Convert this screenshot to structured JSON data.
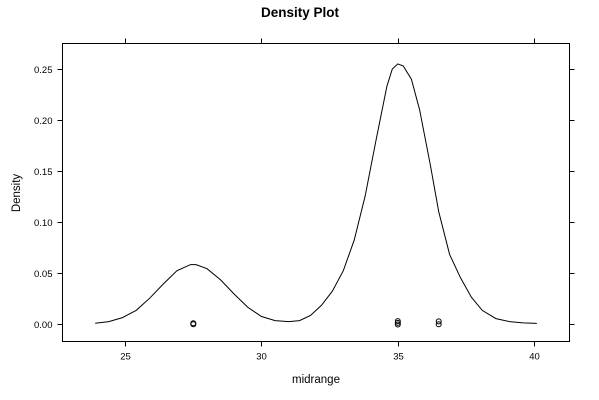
{
  "chart_data": {
    "type": "line",
    "title": "Density Plot",
    "xlabel": "midrange",
    "ylabel": "Density",
    "xlim": [
      22.7,
      41.3
    ],
    "ylim": [
      -0.0175,
      0.275
    ],
    "x_ticks": [
      25,
      30,
      35,
      40
    ],
    "x_tick_labels": [
      "25",
      "30",
      "35",
      "40"
    ],
    "y_ticks": [
      0.0,
      0.05,
      0.1,
      0.15,
      0.2,
      0.25
    ],
    "y_tick_labels": [
      "0.00",
      "0.05",
      "0.10",
      "0.15",
      "0.20",
      "0.25"
    ],
    "grid": false,
    "series": [
      {
        "x": [
          23.9,
          24.4,
          24.9,
          25.4,
          25.9,
          26.4,
          26.9,
          27.4,
          27.6,
          28.0,
          28.5,
          29.0,
          29.5,
          30.0,
          30.5,
          31.0,
          31.4,
          31.8,
          32.2,
          32.6,
          33.0,
          33.4,
          33.8,
          34.2,
          34.6,
          34.8,
          35.0,
          35.2,
          35.5,
          35.8,
          36.2,
          36.5,
          36.9,
          37.3,
          37.7,
          38.1,
          38.6,
          39.1,
          39.6,
          40.1
        ],
        "y": [
          0.0005,
          0.002,
          0.006,
          0.013,
          0.025,
          0.039,
          0.052,
          0.058,
          0.058,
          0.054,
          0.043,
          0.029,
          0.016,
          0.007,
          0.003,
          0.002,
          0.003,
          0.008,
          0.018,
          0.032,
          0.052,
          0.082,
          0.125,
          0.18,
          0.233,
          0.25,
          0.255,
          0.253,
          0.24,
          0.21,
          0.155,
          0.11,
          0.068,
          0.045,
          0.026,
          0.013,
          0.005,
          0.002,
          0.0008,
          0.0003
        ]
      }
    ],
    "rug_points": [
      {
        "x": 27.5,
        "y": -0.0005
      },
      {
        "x": 27.5,
        "y": 0.0005
      },
      {
        "x": 35.0,
        "y": -0.0008
      },
      {
        "x": 35.0,
        "y": 0.0008
      },
      {
        "x": 35.0,
        "y": 0.0025
      },
      {
        "x": 36.5,
        "y": -0.0005
      },
      {
        "x": 36.5,
        "y": 0.0022
      }
    ]
  }
}
